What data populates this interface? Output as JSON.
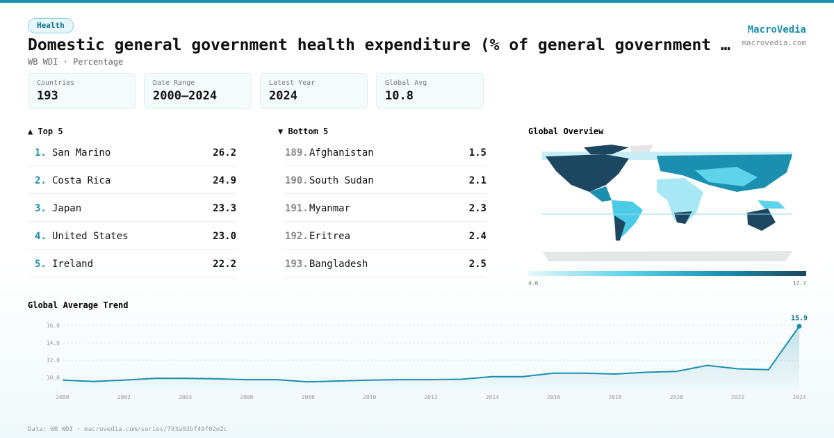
{
  "header": {
    "tag": "Health",
    "title": "Domestic general government health expenditure (% of general government …",
    "subtitle": "WB WDI · Percentage",
    "brand": "MacroVedia",
    "site": "macrovedia.com"
  },
  "stats": [
    {
      "label": "Countries",
      "value": "193"
    },
    {
      "label": "Date Range",
      "value": "2000–2024"
    },
    {
      "label": "Latest Year",
      "value": "2024"
    },
    {
      "label": "Global Avg",
      "value": "10.8"
    }
  ],
  "top": {
    "title": "▲ Top 5",
    "rows": [
      {
        "rank": "1.",
        "name": "San Marino",
        "value": "26.2"
      },
      {
        "rank": "2.",
        "name": "Costa Rica",
        "value": "24.9"
      },
      {
        "rank": "3.",
        "name": "Japan",
        "value": "23.3"
      },
      {
        "rank": "4.",
        "name": "United States",
        "value": "23.0"
      },
      {
        "rank": "5.",
        "name": "Ireland",
        "value": "22.2"
      }
    ]
  },
  "bottom": {
    "title": "▼ Bottom 5",
    "rows": [
      {
        "rank": "189.",
        "name": "Afghanistan",
        "value": "1.5"
      },
      {
        "rank": "190.",
        "name": "South Sudan",
        "value": "2.1"
      },
      {
        "rank": "191.",
        "name": "Myanmar",
        "value": "2.3"
      },
      {
        "rank": "192.",
        "name": "Eritrea",
        "value": "2.4"
      },
      {
        "rank": "193.",
        "name": "Bangladesh",
        "value": "2.5"
      }
    ]
  },
  "map": {
    "title": "Global Overview",
    "legend_min": "4.6",
    "legend_max": "17.7"
  },
  "chart_data": {
    "type": "line",
    "title": "Global Average Trend",
    "color": "#1a8fb0",
    "x": [
      2000,
      2001,
      2002,
      2003,
      2004,
      2005,
      2006,
      2007,
      2008,
      2009,
      2010,
      2011,
      2012,
      2013,
      2014,
      2015,
      2016,
      2017,
      2018,
      2019,
      2020,
      2021,
      2022,
      2023,
      2024
    ],
    "values": [
      9.7,
      9.55,
      9.7,
      9.9,
      9.9,
      9.85,
      9.75,
      9.75,
      9.5,
      9.6,
      9.7,
      9.75,
      9.75,
      9.8,
      10.1,
      10.1,
      10.5,
      10.5,
      10.4,
      10.6,
      10.7,
      11.4,
      11.0,
      10.9,
      15.9
    ],
    "xlim": [
      2000,
      2024
    ],
    "xticks": [
      2000,
      2002,
      2004,
      2006,
      2008,
      2010,
      2012,
      2014,
      2016,
      2018,
      2020,
      2022,
      2024
    ],
    "ylim": [
      8.6,
      16.8
    ],
    "yticks": [
      {
        "value": 10,
        "label": "10.0"
      },
      {
        "value": 12,
        "label": "12.0"
      },
      {
        "value": 14,
        "label": "14.0"
      },
      {
        "value": 16,
        "label": "16.0"
      }
    ],
    "grid": true
  },
  "footer": "Data: WB WDI · macrovedia.com/series/793a92bf49f02e2c"
}
